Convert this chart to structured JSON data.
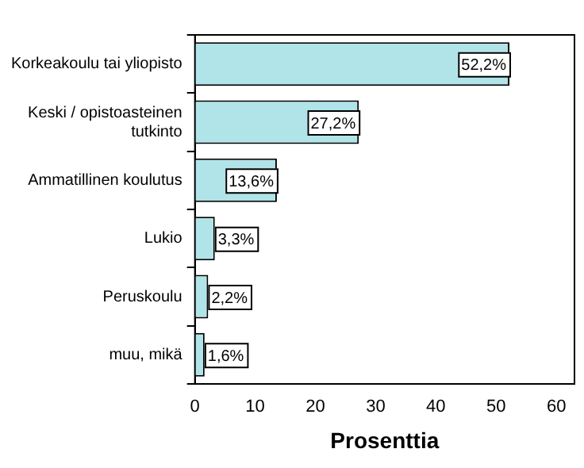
{
  "chart_data": {
    "type": "bar",
    "orientation": "horizontal",
    "xlabel": "Prosenttia",
    "categories": [
      "Korkeakoulu tai yliopisto",
      "Keski / opistoasteinen tutkinto",
      "Ammatillinen koulutus",
      "Lukio",
      "Peruskoulu",
      "muu, mikä"
    ],
    "values": [
      52.2,
      27.2,
      13.6,
      3.3,
      2.2,
      1.6
    ],
    "value_labels": [
      "52,2%",
      "27,2%",
      "13,6%",
      "3,3%",
      "2,2%",
      "1,6%"
    ],
    "color": "#b0e4e8",
    "xlim": [
      0,
      63
    ],
    "xticks": [
      0,
      10,
      20,
      30,
      40,
      50,
      60
    ],
    "grid": false,
    "legend": false
  }
}
